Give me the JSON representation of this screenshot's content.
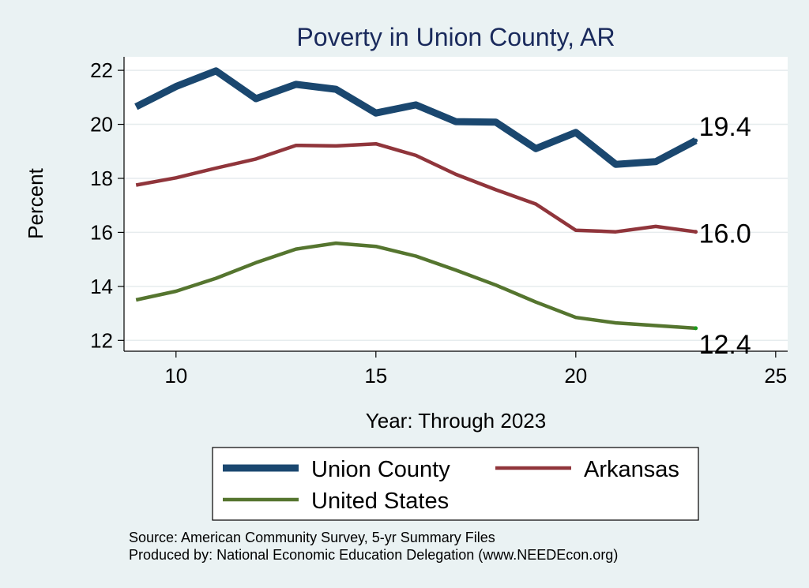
{
  "chart_data": {
    "type": "line",
    "title": "Poverty in Union County, AR",
    "xlabel": "Year: Through 2023",
    "ylabel": "Percent",
    "xlim": [
      8.7,
      25.3
    ],
    "ylim": [
      11.6,
      22.5
    ],
    "xticks": [
      10,
      15,
      20,
      25
    ],
    "yticks": [
      12,
      14,
      16,
      18,
      20,
      22
    ],
    "grid": true,
    "legend_position": "bottom",
    "x": [
      9,
      10,
      11,
      12,
      13,
      14,
      15,
      16,
      17,
      18,
      19,
      20,
      21,
      22,
      23
    ],
    "series": [
      {
        "name": "Union County",
        "color": "#1a476f",
        "values": [
          20.65,
          21.4,
          21.98,
          20.95,
          21.48,
          21.3,
          20.42,
          20.72,
          20.1,
          20.08,
          19.1,
          19.7,
          18.52,
          18.62,
          19.4
        ],
        "end_label": "19.4"
      },
      {
        "name": "Arkansas",
        "color": "#90353b",
        "values": [
          17.75,
          18.02,
          18.38,
          18.72,
          19.22,
          19.2,
          19.28,
          18.85,
          18.15,
          17.58,
          17.05,
          16.08,
          16.02,
          16.22,
          16.02
        ],
        "end_label": "16.0"
      },
      {
        "name": "United States",
        "color": "#55752f",
        "values": [
          13.5,
          13.82,
          14.3,
          14.88,
          15.38,
          15.6,
          15.48,
          15.12,
          14.6,
          14.05,
          13.42,
          12.85,
          12.65,
          12.55,
          12.45
        ],
        "end_label": "12.4"
      }
    ]
  },
  "source_line1": "Source: American Community Survey, 5-yr Summary Files",
  "source_line2": "Produced by: National Economic Education Delegation (www.NEEDEcon.org)"
}
